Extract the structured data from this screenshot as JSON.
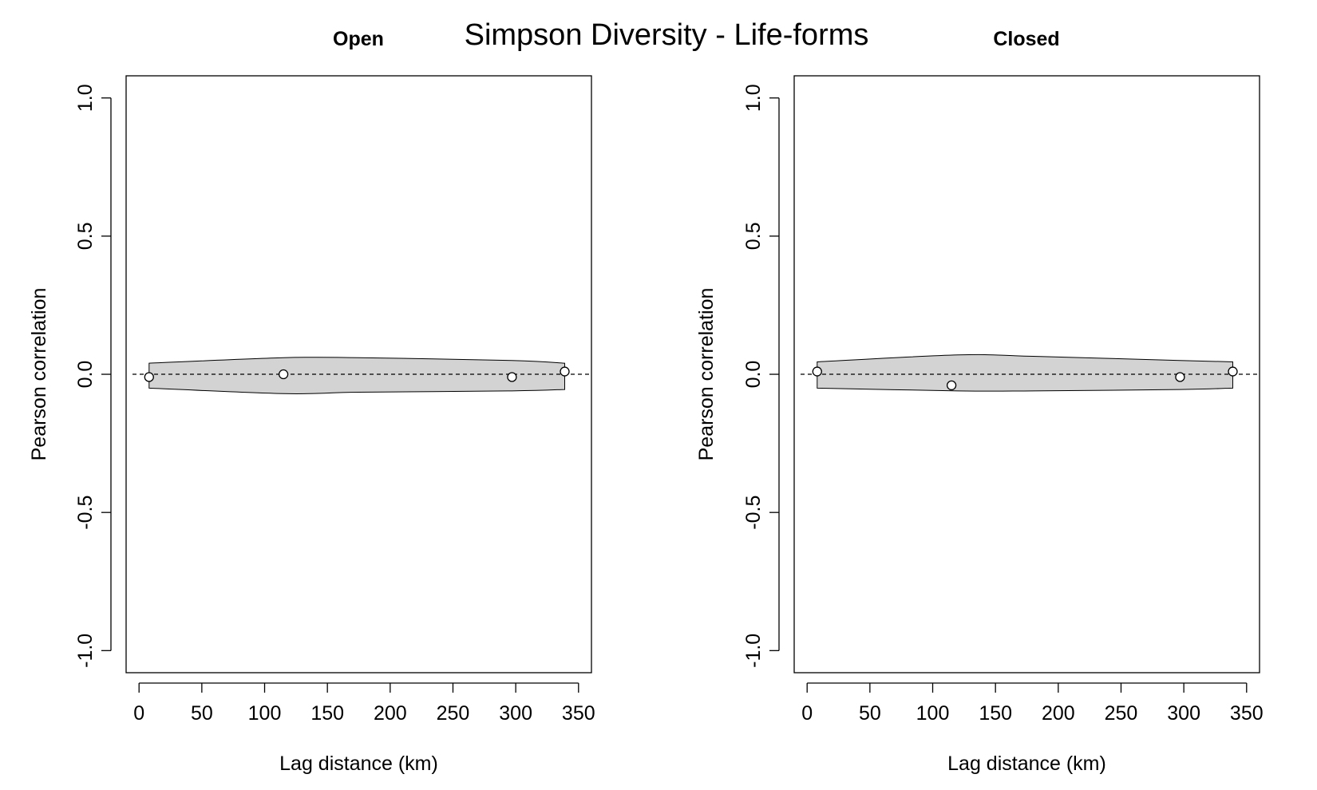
{
  "figure": {
    "title": "Simpson Diversity - Life-forms"
  },
  "chart_data": [
    {
      "type": "line",
      "panel_title": "Open",
      "xlabel": "Lag distance (km)",
      "ylabel": "Pearson correlation",
      "xlim": [
        0,
        350
      ],
      "ylim": [
        -1.0,
        1.0
      ],
      "x_ticks": [
        0,
        50,
        100,
        150,
        200,
        250,
        300,
        350
      ],
      "y_ticks": [
        -1.0,
        -0.5,
        0.0,
        0.5,
        1.0
      ],
      "y_tick_labels": [
        "-1.0",
        "-0.5",
        "0.0",
        "0.5",
        "1.0"
      ],
      "reference_line_y": 0.0,
      "points": {
        "x": [
          8,
          115,
          297,
          339
        ],
        "y": [
          -0.01,
          0.0,
          -0.01,
          0.01
        ]
      },
      "envelope": {
        "x": [
          8,
          115,
          175,
          297,
          339
        ],
        "upper": [
          0.04,
          0.06,
          0.06,
          0.05,
          0.04
        ],
        "lower": [
          -0.05,
          -0.07,
          -0.065,
          -0.06,
          -0.055
        ]
      },
      "grid": false,
      "colors": {
        "envelope": "#d3d3d3",
        "points": "#ffffff",
        "lines": "#000000"
      }
    },
    {
      "type": "line",
      "panel_title": "Closed",
      "xlabel": "Lag distance (km)",
      "ylabel": "Pearson correlation",
      "xlim": [
        0,
        350
      ],
      "ylim": [
        -1.0,
        1.0
      ],
      "x_ticks": [
        0,
        50,
        100,
        150,
        200,
        250,
        300,
        350
      ],
      "y_ticks": [
        -1.0,
        -0.5,
        0.0,
        0.5,
        1.0
      ],
      "y_tick_labels": [
        "-1.0",
        "-0.5",
        "0.0",
        "0.5",
        "1.0"
      ],
      "reference_line_y": 0.0,
      "points": {
        "x": [
          8,
          115,
          297,
          339
        ],
        "y": [
          0.01,
          -0.04,
          -0.01,
          0.01
        ]
      },
      "envelope": {
        "x": [
          8,
          120,
          180,
          297,
          339
        ],
        "upper": [
          0.045,
          0.07,
          0.065,
          0.05,
          0.045
        ],
        "lower": [
          -0.05,
          -0.06,
          -0.06,
          -0.055,
          -0.05
        ]
      },
      "grid": false,
      "colors": {
        "envelope": "#d3d3d3",
        "points": "#ffffff",
        "lines": "#000000"
      }
    }
  ]
}
